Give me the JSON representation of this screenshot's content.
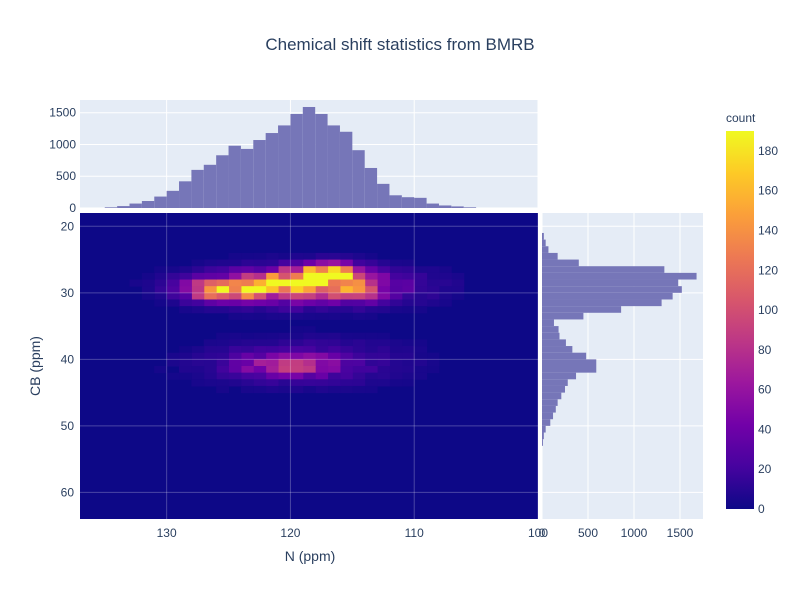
{
  "chart_data": {
    "type": "heatmap",
    "title": "Chemical shift statistics from BMRB",
    "main": {
      "type": "heatmap",
      "xlabel": "N (ppm)",
      "ylabel": "CB (ppm)",
      "xlim": [
        137,
        100
      ],
      "ylim": [
        64,
        18
      ],
      "x_ticks": [
        130,
        120,
        110,
        100
      ],
      "y_ticks": [
        20,
        30,
        40,
        50,
        60
      ],
      "bin_x_width": 1,
      "bin_y_width": 1,
      "hotspots": [
        {
          "x": 118,
          "y": 27.5,
          "count": 190
        },
        {
          "x": 116.5,
          "y": 27,
          "count": 175
        },
        {
          "x": 126.5,
          "y": 29.5,
          "count": 175
        },
        {
          "x": 124,
          "y": 29.5,
          "count": 155
        },
        {
          "x": 121,
          "y": 28.5,
          "count": 150
        },
        {
          "x": 115,
          "y": 29.5,
          "count": 120
        },
        {
          "x": 119,
          "y": 41,
          "count": 120
        },
        {
          "x": 123,
          "y": 41,
          "count": 55
        }
      ]
    },
    "top_histogram": {
      "type": "bar",
      "ylim": [
        0,
        1700
      ],
      "y_ticks": [
        0,
        500,
        1000,
        1500
      ],
      "bins": [
        {
          "x": 134.5,
          "count": 10
        },
        {
          "x": 133.5,
          "count": 30
        },
        {
          "x": 132.5,
          "count": 70
        },
        {
          "x": 131.5,
          "count": 110
        },
        {
          "x": 130.5,
          "count": 180
        },
        {
          "x": 129.5,
          "count": 270
        },
        {
          "x": 128.5,
          "count": 420
        },
        {
          "x": 127.5,
          "count": 600
        },
        {
          "x": 126.5,
          "count": 680
        },
        {
          "x": 125.5,
          "count": 830
        },
        {
          "x": 124.5,
          "count": 980
        },
        {
          "x": 123.5,
          "count": 930
        },
        {
          "x": 122.5,
          "count": 1070
        },
        {
          "x": 121.5,
          "count": 1180
        },
        {
          "x": 120.5,
          "count": 1300
        },
        {
          "x": 119.5,
          "count": 1480
        },
        {
          "x": 118.5,
          "count": 1590
        },
        {
          "x": 117.5,
          "count": 1480
        },
        {
          "x": 116.5,
          "count": 1300
        },
        {
          "x": 115.5,
          "count": 1200
        },
        {
          "x": 114.5,
          "count": 910
        },
        {
          "x": 113.5,
          "count": 630
        },
        {
          "x": 112.5,
          "count": 380
        },
        {
          "x": 111.5,
          "count": 200
        },
        {
          "x": 110.5,
          "count": 170
        },
        {
          "x": 109.5,
          "count": 160
        },
        {
          "x": 108.5,
          "count": 70
        },
        {
          "x": 107.5,
          "count": 40
        },
        {
          "x": 106.5,
          "count": 25
        },
        {
          "x": 105.5,
          "count": 10
        }
      ]
    },
    "right_histogram": {
      "type": "bar",
      "xlim": [
        0,
        1750
      ],
      "x_ticks": [
        0,
        500,
        1000,
        1500
      ],
      "bins": [
        {
          "y": 21.5,
          "count": 20
        },
        {
          "y": 22.5,
          "count": 40
        },
        {
          "y": 23.5,
          "count": 70
        },
        {
          "y": 24.5,
          "count": 170
        },
        {
          "y": 25.5,
          "count": 400
        },
        {
          "y": 26.5,
          "count": 1330
        },
        {
          "y": 27.5,
          "count": 1680
        },
        {
          "y": 28.5,
          "count": 1480
        },
        {
          "y": 29.5,
          "count": 1520
        },
        {
          "y": 30.5,
          "count": 1420
        },
        {
          "y": 31.5,
          "count": 1300
        },
        {
          "y": 32.5,
          "count": 860
        },
        {
          "y": 33.5,
          "count": 450
        },
        {
          "y": 34.5,
          "count": 130
        },
        {
          "y": 35.5,
          "count": 180
        },
        {
          "y": 36.5,
          "count": 190
        },
        {
          "y": 37.5,
          "count": 260
        },
        {
          "y": 38.5,
          "count": 330
        },
        {
          "y": 39.5,
          "count": 480
        },
        {
          "y": 40.5,
          "count": 590
        },
        {
          "y": 41.5,
          "count": 590
        },
        {
          "y": 42.5,
          "count": 370
        },
        {
          "y": 43.5,
          "count": 280
        },
        {
          "y": 44.5,
          "count": 250
        },
        {
          "y": 45.5,
          "count": 210
        },
        {
          "y": 46.5,
          "count": 170
        },
        {
          "y": 47.5,
          "count": 150
        },
        {
          "y": 48.5,
          "count": 120
        },
        {
          "y": 49.5,
          "count": 90
        },
        {
          "y": 50.5,
          "count": 40
        },
        {
          "y": 51.5,
          "count": 20
        },
        {
          "y": 52.5,
          "count": 10
        }
      ]
    },
    "colorbar": {
      "title": "count",
      "range": [
        0,
        190
      ],
      "ticks": [
        0,
        20,
        40,
        60,
        80,
        100,
        120,
        140,
        160,
        180
      ],
      "colorscale": [
        "#0d0887",
        "#46039f",
        "#7201a8",
        "#9c179e",
        "#bd3786",
        "#d8576b",
        "#ed7953",
        "#fb9f3a",
        "#fdca26",
        "#f0f921"
      ]
    },
    "colors": {
      "plot_bg": "#e5ecf6",
      "histogram_fill": "#7676b8",
      "grid": "#ffffff",
      "text": "#2a3f5f"
    }
  }
}
